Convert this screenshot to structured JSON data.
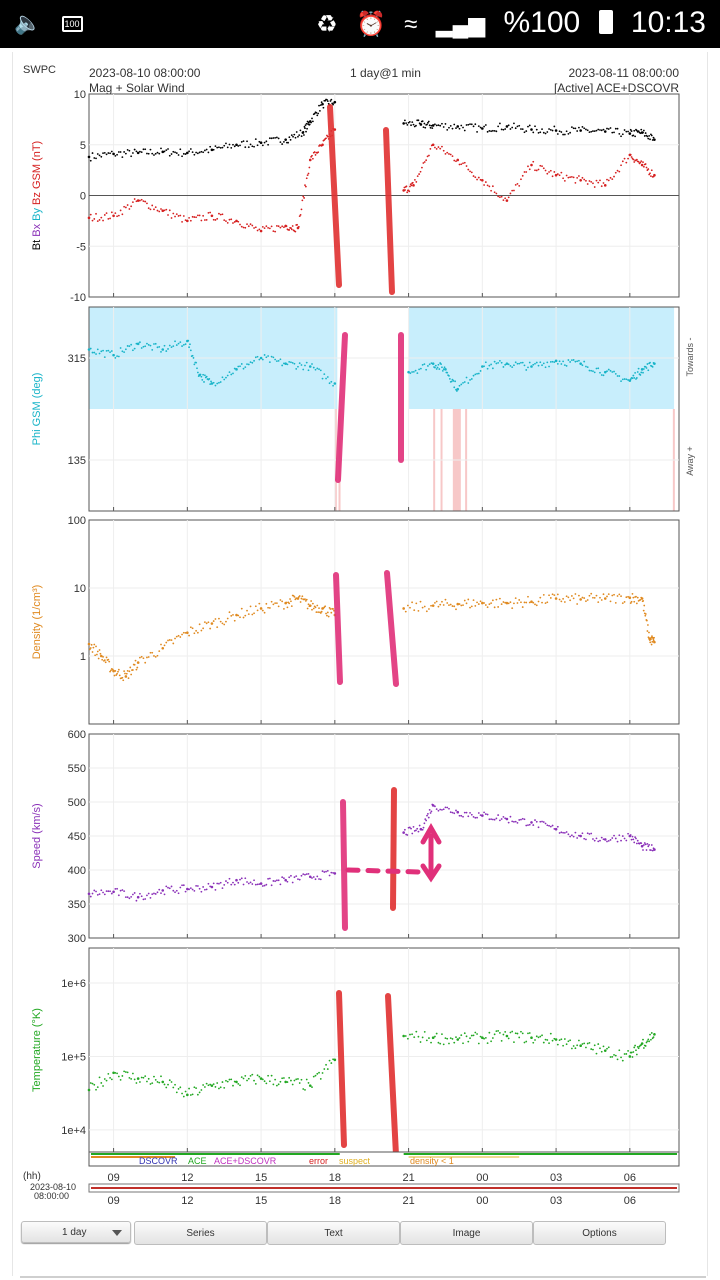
{
  "status_bar": {
    "battery_badge": "100",
    "battery_percent": "%100",
    "time": "10:13",
    "icons": [
      "volume-icon",
      "battery-small-icon",
      "recycle-icon",
      "alarm-icon",
      "wifi-icon",
      "signal-icon",
      "battery-icon"
    ]
  },
  "page": {
    "org": "SWPC",
    "start_time": "2023-08-10 08:00:00",
    "title": "Mag + Solar Wind",
    "range": "1 day@1 min",
    "end_time": "2023-08-11 08:00:00",
    "source": "[Active] ACE+DSCOVR"
  },
  "chart_data": [
    {
      "type": "scatter",
      "ylabel_parts": [
        "Bt",
        "Bx",
        "By",
        "Bz GSM (nT)"
      ],
      "ylim": [
        -10,
        10
      ],
      "yticks": [
        "10",
        "5",
        "0",
        "-5",
        "-10"
      ],
      "series": [
        {
          "name": "Bt",
          "color": "#000000",
          "x": [
            8.0,
            9.0,
            10.0,
            11.0,
            12.0,
            13.0,
            14.0,
            15.0,
            16.0,
            16.7,
            17.0,
            17.5,
            18.0,
            20.8,
            21.5,
            22.0,
            23.0,
            0.0,
            1.0,
            2.0,
            3.0,
            4.0,
            5.0,
            6.0,
            6.5,
            7.0
          ],
          "y": [
            3.8,
            4.1,
            4.2,
            4.3,
            4.2,
            4.5,
            5.0,
            5.2,
            5.5,
            6.2,
            7.3,
            9.0,
            9.2,
            7.1,
            7.0,
            6.9,
            6.8,
            6.6,
            6.8,
            6.5,
            6.4,
            6.4,
            6.3,
            6.1,
            6.2,
            5.5
          ]
        },
        {
          "name": "Bz",
          "color": "#d62020",
          "x": [
            8.0,
            9.0,
            10.0,
            11.0,
            12.0,
            13.0,
            14.0,
            15.0,
            16.0,
            16.5,
            17.0,
            17.5,
            18.0,
            20.8,
            21.2,
            22.0,
            23.0,
            0.0,
            1.0,
            2.0,
            3.0,
            4.0,
            5.0,
            6.0,
            6.5,
            7.0
          ],
          "y": [
            -2.2,
            -2.0,
            -0.5,
            -1.5,
            -2.5,
            -2.0,
            -2.5,
            -3.5,
            -3.0,
            -3.2,
            3.5,
            5.0,
            6.5,
            0.5,
            1.0,
            5.0,
            3.5,
            1.5,
            -0.5,
            3.0,
            2.0,
            1.5,
            1.0,
            4.0,
            3.0,
            2.0
          ]
        }
      ],
      "gap": [
        18.2,
        20.8
      ]
    },
    {
      "type": "scatter",
      "ylabel": "Phi GSM (deg)",
      "ylim": [
        45,
        405
      ],
      "yticks": [
        "315",
        "135"
      ],
      "side_labels": [
        "Towards -",
        "Away +"
      ],
      "series": [
        {
          "name": "Phi",
          "color": "#18b4c8",
          "x": [
            8.0,
            9.0,
            10.0,
            11.0,
            12.0,
            12.5,
            13.0,
            14.0,
            15.0,
            16.0,
            17.0,
            18.0,
            21.0,
            22.0,
            22.5,
            23.0,
            0.0,
            1.0,
            2.0,
            3.0,
            4.0,
            5.0,
            6.0,
            6.5,
            7.0
          ],
          "y": [
            330,
            320,
            340,
            330,
            345,
            285,
            270,
            295,
            315,
            305,
            300,
            270,
            290,
            305,
            295,
            260,
            300,
            305,
            300,
            310,
            305,
            290,
            275,
            295,
            305
          ]
        }
      ],
      "shaded_bands": [
        "towards",
        "away"
      ],
      "gap": [
        18.2,
        20.8
      ]
    },
    {
      "type": "scatter",
      "ylabel": "Density (1/cm³)",
      "log": true,
      "ylim": [
        0.1,
        100
      ],
      "yticks": [
        "100",
        "10",
        "1"
      ],
      "series": [
        {
          "name": "Density",
          "color": "#e08a20",
          "x": [
            8.0,
            8.5,
            9.0,
            9.5,
            10.0,
            11.0,
            12.0,
            13.0,
            14.0,
            15.0,
            16.0,
            16.5,
            17.0,
            17.5,
            18.0,
            20.8,
            22.0,
            23.0,
            0.0,
            1.0,
            2.0,
            3.0,
            4.0,
            5.0,
            6.0,
            6.5,
            6.8,
            7.0
          ],
          "y": [
            1.5,
            1.0,
            0.6,
            0.5,
            0.8,
            1.3,
            2.2,
            3.0,
            4.0,
            5.0,
            6.0,
            7.0,
            5.5,
            5.0,
            4.0,
            5.0,
            5.5,
            5.8,
            6.0,
            6.0,
            6.3,
            7.0,
            6.8,
            7.0,
            7.2,
            7.0,
            1.8,
            1.6
          ]
        }
      ],
      "gap": [
        18.2,
        20.8
      ]
    },
    {
      "type": "scatter",
      "ylabel": "Speed (km/s)",
      "ylim": [
        300,
        600
      ],
      "yticks": [
        "600",
        "550",
        "500",
        "450",
        "400",
        "350",
        "300"
      ],
      "series": [
        {
          "name": "Speed",
          "color": "#8a30b8",
          "x": [
            8.0,
            9.0,
            10.0,
            11.0,
            12.0,
            13.0,
            14.0,
            15.0,
            16.0,
            17.0,
            18.0,
            20.8,
            21.5,
            22.0,
            23.0,
            0.0,
            1.0,
            2.0,
            3.0,
            4.0,
            5.0,
            6.0,
            6.5,
            7.0
          ],
          "y": [
            365,
            368,
            360,
            370,
            372,
            375,
            385,
            380,
            385,
            390,
            395,
            455,
            460,
            495,
            485,
            480,
            475,
            470,
            460,
            450,
            445,
            450,
            435,
            430
          ]
        }
      ],
      "gap": [
        18.2,
        20.8
      ]
    },
    {
      "type": "scatter",
      "ylabel": "Temperature (°K)",
      "log": true,
      "ylim": [
        5000,
        3000000
      ],
      "yticks": [
        "1e+6",
        "1e+5",
        "1e+4"
      ],
      "series": [
        {
          "name": "Temperature",
          "color": "#22a822",
          "x": [
            8.0,
            9.0,
            10.0,
            11.0,
            12.0,
            13.0,
            14.0,
            15.0,
            16.0,
            17.0,
            18.0,
            20.8,
            22.0,
            23.0,
            0.0,
            1.0,
            2.0,
            3.0,
            4.0,
            5.0,
            6.0,
            6.5,
            7.0
          ],
          "y": [
            35000,
            60000,
            50000,
            45000,
            30000,
            40000,
            45000,
            50000,
            45000,
            40000,
            90000,
            190000,
            180000,
            170000,
            180000,
            190000,
            180000,
            170000,
            140000,
            120000,
            100000,
            150000,
            200000
          ]
        }
      ],
      "gap": [
        18.2,
        20.8
      ]
    }
  ],
  "x_axis": {
    "unit_label": "(hh)",
    "ticks": [
      {
        "hour": 9,
        "label": "09"
      },
      {
        "hour": 12,
        "label": "12"
      },
      {
        "hour": 15,
        "label": "15"
      },
      {
        "hour": 18,
        "label": "18"
      },
      {
        "hour": 21,
        "label": "21"
      },
      {
        "hour": 24,
        "label": "00"
      },
      {
        "hour": 27,
        "label": "03"
      },
      {
        "hour": 30,
        "label": "06"
      }
    ],
    "start_hour": 8,
    "end_hour": 32
  },
  "legend": [
    {
      "label": "DSCOVR",
      "color": "#3030b0"
    },
    {
      "label": "ACE",
      "color": "#22a822"
    },
    {
      "label": "ACE+DSCOVR",
      "color": "#c030c0"
    },
    {
      "label": "error",
      "color": "#d62020"
    },
    {
      "label": "suspect",
      "color": "#e0b020"
    },
    {
      "label": "density < 1",
      "color": "#e08a20"
    }
  ],
  "overview": {
    "date": "2023-08-10",
    "time": "08:00:00"
  },
  "toolbar": {
    "range_select": "1 day",
    "series": "Series",
    "text": "Text",
    "image": "Image",
    "options": "Options"
  }
}
